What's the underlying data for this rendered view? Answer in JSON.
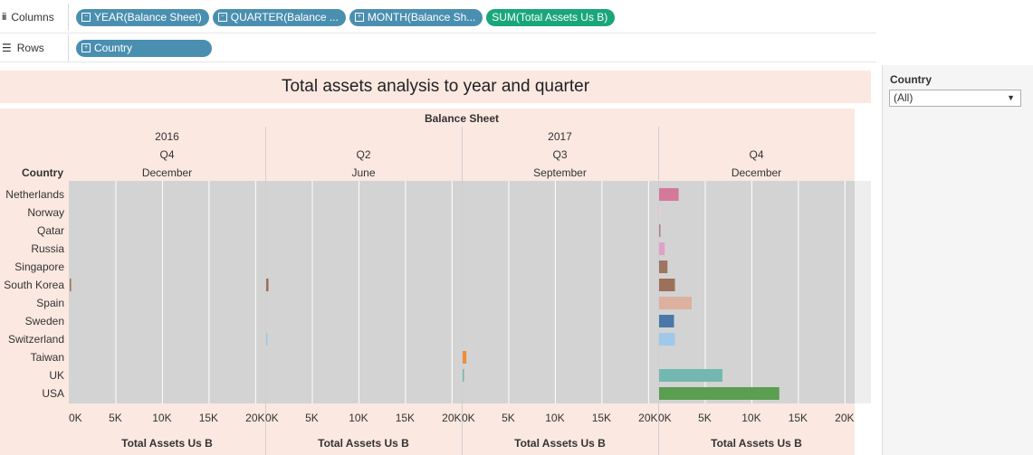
{
  "shelves": {
    "columns": {
      "label": "Columns",
      "pills": [
        {
          "text": "YEAR(Balance Sheet)",
          "color": "#4a8fb0",
          "toggle": "−"
        },
        {
          "text": "QUARTER(Balance ...",
          "color": "#4a8fb0",
          "toggle": "−"
        },
        {
          "text": "MONTH(Balance Sh...",
          "color": "#4a8fb0",
          "toggle": "+"
        },
        {
          "text": "SUM(Total Assets Us B)",
          "color": "#19a67a",
          "toggle": ""
        }
      ]
    },
    "rows": {
      "label": "Rows",
      "pills": [
        {
          "text": "Country",
          "color": "#4a8fb0",
          "toggle": "+"
        }
      ]
    }
  },
  "worksheet": {
    "title": "Total assets analysis to year and quarter",
    "group_header": "Balance Sheet",
    "row_header": "Country",
    "axis_title": "Total Assets Us B"
  },
  "filter": {
    "title": "Country",
    "selected": "(All)"
  },
  "chart_data": {
    "type": "bar",
    "orientation": "horizontal",
    "title": "Total assets analysis to year and quarter",
    "panes": [
      {
        "year": "2016",
        "quarter": "Q4",
        "month": "December"
      },
      {
        "year": "2017",
        "quarter": "Q2",
        "month": "June"
      },
      {
        "year": "2017",
        "quarter": "Q3",
        "month": "September"
      },
      {
        "year": "2017",
        "quarter": "Q4",
        "month": "December"
      }
    ],
    "years": [
      {
        "label": "2016",
        "span": [
          0,
          0
        ]
      },
      {
        "label": "2017",
        "span": [
          1,
          3
        ]
      }
    ],
    "categories": [
      "Netherlands",
      "Norway",
      "Qatar",
      "Russia",
      "Singapore",
      "South Korea",
      "Spain",
      "Sweden",
      "Switzerland",
      "Taiwan",
      "UK",
      "USA"
    ],
    "colors": {
      "Netherlands": "#d4799a",
      "Norway": "#f2c8d8",
      "Qatar": "#b5799a",
      "Russia": "#dea1c8",
      "Singapore": "#9c7560",
      "South Korea": "#9c705a",
      "Spain": "#ddb0a0",
      "Sweden": "#4a77aa",
      "Switzerland": "#a0c8e8",
      "Taiwan": "#f08c3a",
      "UK": "#72b8b0",
      "USA": "#5a9e50"
    },
    "values": [
      [
        0,
        0,
        0,
        0,
        0,
        150,
        0,
        0,
        0,
        0,
        0,
        0
      ],
      [
        0,
        0,
        0,
        0,
        0,
        250,
        0,
        0,
        60,
        0,
        0,
        0
      ],
      [
        0,
        0,
        0,
        0,
        0,
        0,
        0,
        0,
        0,
        400,
        150,
        0
      ],
      [
        2100,
        80,
        150,
        600,
        900,
        1700,
        3500,
        1600,
        1700,
        0,
        6800,
        12900
      ]
    ],
    "x_ticks": [
      "0K",
      "5K",
      "10K",
      "15K",
      "20K"
    ],
    "xlim": [
      0,
      20500
    ],
    "xlabel": "Total Assets Us B",
    "ylabel": "Country",
    "grid": true
  }
}
